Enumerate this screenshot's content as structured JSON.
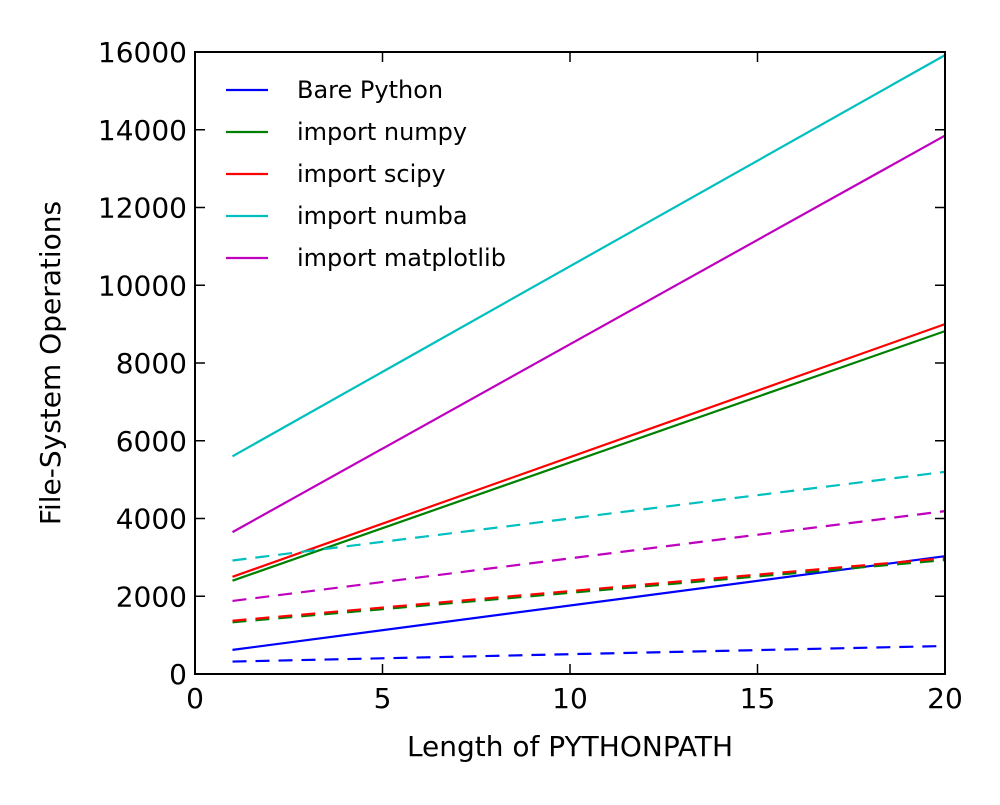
{
  "chart_data": {
    "type": "line",
    "xlabel": "Length of PYTHONPATH",
    "ylabel": "File-System Operations",
    "xlim": [
      0,
      20
    ],
    "ylim": [
      0,
      16000
    ],
    "xticks": [
      0,
      5,
      10,
      15,
      20
    ],
    "yticks": [
      0,
      2000,
      4000,
      6000,
      8000,
      10000,
      12000,
      14000,
      16000
    ],
    "grid": false,
    "legend_position": "top-left",
    "x": [
      1,
      20
    ],
    "series": [
      {
        "name": "Bare Python",
        "color": "#0000ff",
        "style": "solid",
        "values": [
          620,
          3030
        ],
        "in_legend": true
      },
      {
        "name": "import numpy",
        "color": "#008000",
        "style": "solid",
        "values": [
          2400,
          8820
        ],
        "in_legend": true
      },
      {
        "name": "import scipy",
        "color": "#ff0000",
        "style": "solid",
        "values": [
          2500,
          9000
        ],
        "in_legend": true
      },
      {
        "name": "import numba",
        "color": "#00bfbf",
        "style": "solid",
        "values": [
          5600,
          15920
        ],
        "in_legend": true
      },
      {
        "name": "import matplotlib",
        "color": "#bf00bf",
        "style": "solid",
        "values": [
          3650,
          13850
        ],
        "in_legend": true
      },
      {
        "color": "#0000ff",
        "style": "dashed",
        "values": [
          320,
          720
        ],
        "in_legend": false
      },
      {
        "color": "#008000",
        "style": "dashed",
        "values": [
          1330,
          2930
        ],
        "in_legend": false
      },
      {
        "color": "#ff0000",
        "style": "dashed",
        "values": [
          1370,
          2980
        ],
        "in_legend": false
      },
      {
        "color": "#00bfbf",
        "style": "dashed",
        "values": [
          2920,
          5200
        ],
        "in_legend": false
      },
      {
        "color": "#bf00bf",
        "style": "dashed",
        "values": [
          1880,
          4190
        ],
        "in_legend": false
      }
    ]
  }
}
